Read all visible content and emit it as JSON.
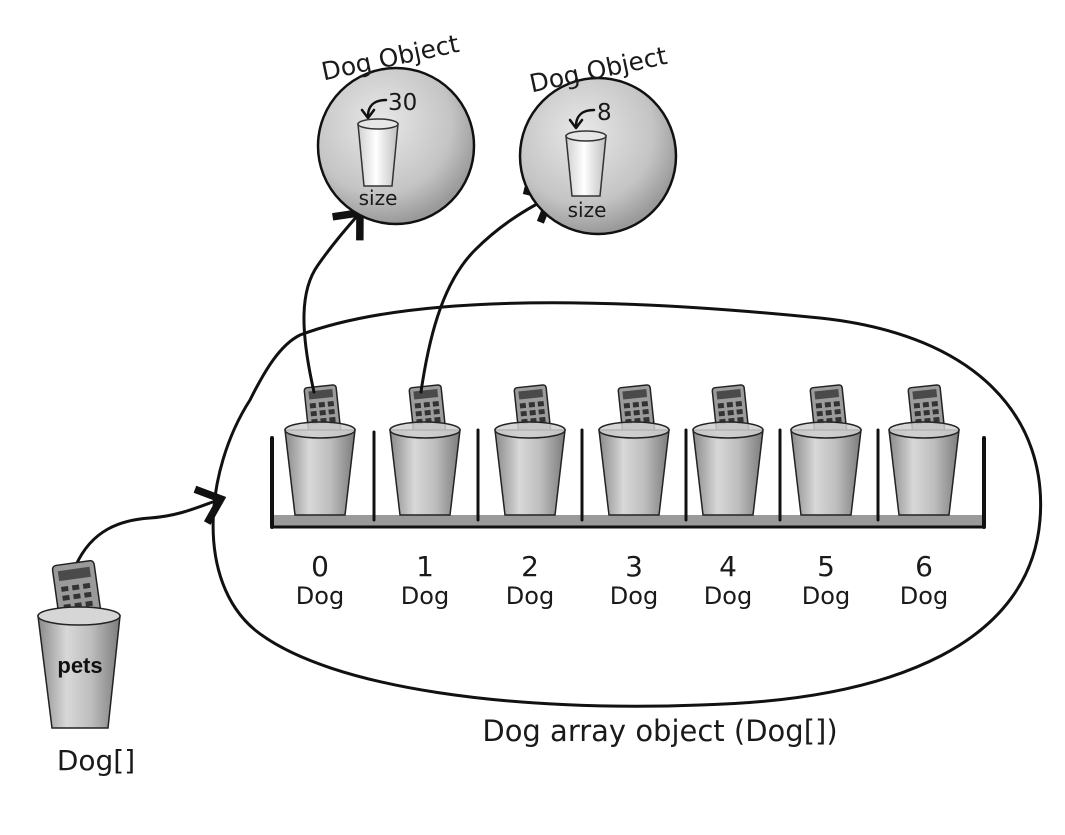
{
  "objects": [
    {
      "title": "Dog Object",
      "value": "30",
      "field": "size"
    },
    {
      "title": "Dog Object",
      "value": "8",
      "field": "size"
    }
  ],
  "array": {
    "caption": "Dog array object (Dog[])",
    "slots": [
      {
        "index": "0",
        "type": "Dog"
      },
      {
        "index": "1",
        "type": "Dog"
      },
      {
        "index": "2",
        "type": "Dog"
      },
      {
        "index": "3",
        "type": "Dog"
      },
      {
        "index": "4",
        "type": "Dog"
      },
      {
        "index": "5",
        "type": "Dog"
      },
      {
        "index": "6",
        "type": "Dog"
      }
    ]
  },
  "reference": {
    "name": "pets",
    "type": "Dog[]"
  }
}
